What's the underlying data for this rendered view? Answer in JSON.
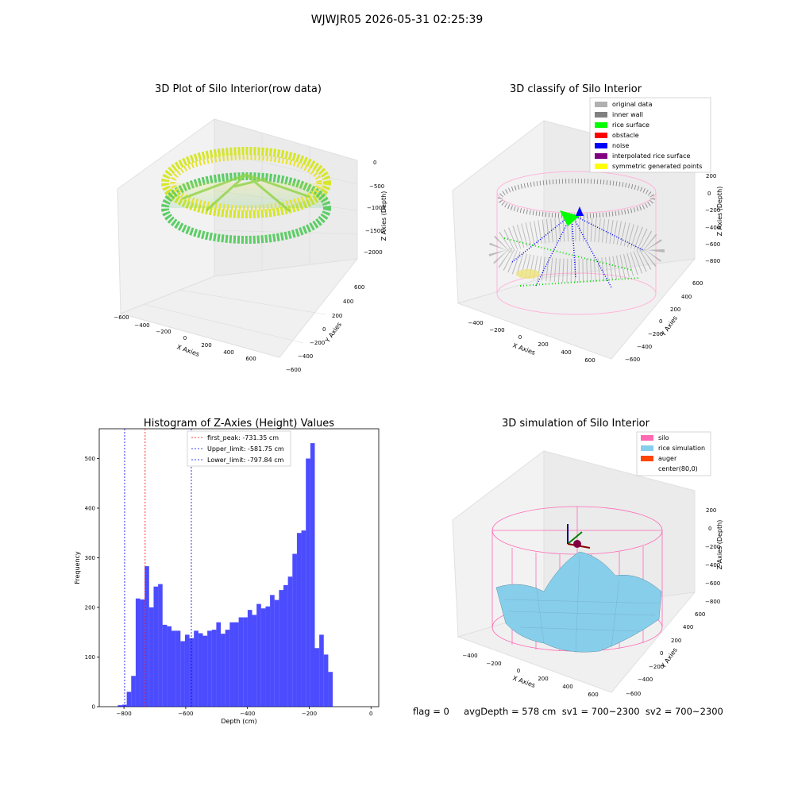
{
  "suptitle": "WJWJR05 2026-05-31 02:25:39",
  "panels": {
    "raw": {
      "title": "3D Plot of Silo Interior(row data)",
      "xlabel": "X Axies",
      "ylabel": "Y Axies",
      "zlabel": "Z Axies (Depth)",
      "xticks": [
        "−600",
        "−400",
        "−200",
        "0",
        "200",
        "400",
        "600"
      ],
      "yticks": [
        "600",
        "400",
        "200",
        "0",
        "−200",
        "−400",
        "−600"
      ],
      "zticks": [
        "0",
        "−500",
        "−1000",
        "−1500",
        "−2000"
      ]
    },
    "classify": {
      "title": "3D classify of Silo Interior",
      "xlabel": "X Axies",
      "ylabel": "Y Axies",
      "zlabel": "Z Axies (Depth)",
      "xticks": [
        "−400",
        "−200",
        "0",
        "200",
        "400",
        "600"
      ],
      "yticks": [
        "600",
        "400",
        "200",
        "0",
        "−200",
        "−400",
        "−600"
      ],
      "zticks": [
        "200",
        "0",
        "−200",
        "−400",
        "−600",
        "−800"
      ],
      "legend": [
        {
          "label": "original data",
          "color": "#b0b0b0"
        },
        {
          "label": "inner wall",
          "color": "#808080"
        },
        {
          "label": "rice surface",
          "color": "#00ff00"
        },
        {
          "label": "obstacle",
          "color": "#ff0000"
        },
        {
          "label": "noise",
          "color": "#0000ff"
        },
        {
          "label": "interpolated rice surface",
          "color": "#800080"
        },
        {
          "label": "symmetric generated points",
          "color": "#ffff00"
        }
      ]
    },
    "simulation": {
      "title": "3D simulation of Silo Interior",
      "xlabel": "X Axies",
      "ylabel": "Y Axies",
      "zlabel": "Z Axies (Depth)",
      "xticks": [
        "−400",
        "−200",
        "0",
        "200",
        "400",
        "600"
      ],
      "yticks": [
        "600",
        "400",
        "200",
        "0",
        "−200",
        "−400",
        "−600"
      ],
      "zticks": [
        "200",
        "0",
        "−200",
        "−400",
        "−600",
        "−800"
      ],
      "legend": [
        {
          "label": "silo",
          "color": "#ff69b4"
        },
        {
          "label": "rice simulation",
          "color": "#87ceeb"
        },
        {
          "label": "auger",
          "color": "#ff4500"
        },
        {
          "label": "center(80,0)",
          "color": "#ffffff"
        }
      ]
    }
  },
  "footer": "flag = 0     avgDepth = 578 cm  sv1 = 700~2300  sv2 = 700~2300",
  "chart_data": [
    {
      "type": "bar",
      "title": "Histogram of Z-Axies (Height) Values",
      "xlabel": "Depth (cm)",
      "ylabel": "Frequency",
      "xlim": [
        -880,
        25
      ],
      "ylim": [
        0,
        560
      ],
      "xticks": [
        -800,
        -600,
        -400,
        -200,
        0
      ],
      "yticks": [
        0,
        100,
        200,
        300,
        400,
        500
      ],
      "bin_width": 14.5,
      "bin_start": -820,
      "values": [
        3,
        4,
        30,
        62,
        218,
        216,
        283,
        200,
        242,
        247,
        165,
        162,
        153,
        153,
        132,
        145,
        138,
        153,
        148,
        143,
        153,
        155,
        170,
        147,
        155,
        170,
        170,
        180,
        180,
        195,
        185,
        207,
        198,
        202,
        225,
        215,
        235,
        245,
        262,
        308,
        350,
        355,
        500,
        531,
        118,
        145,
        105,
        70
      ],
      "color": "#0000ff",
      "vlines": [
        {
          "label": "first_peak: -731.35 cm",
          "x": -731.35,
          "color": "#ff0000"
        },
        {
          "label": "Upper_limit: -581.75 cm",
          "x": -581.75,
          "color": "#0000ff"
        },
        {
          "label": "Lower_limit: -797.84 cm",
          "x": -797.84,
          "color": "#0000ff"
        }
      ],
      "legend_position": "top"
    }
  ]
}
